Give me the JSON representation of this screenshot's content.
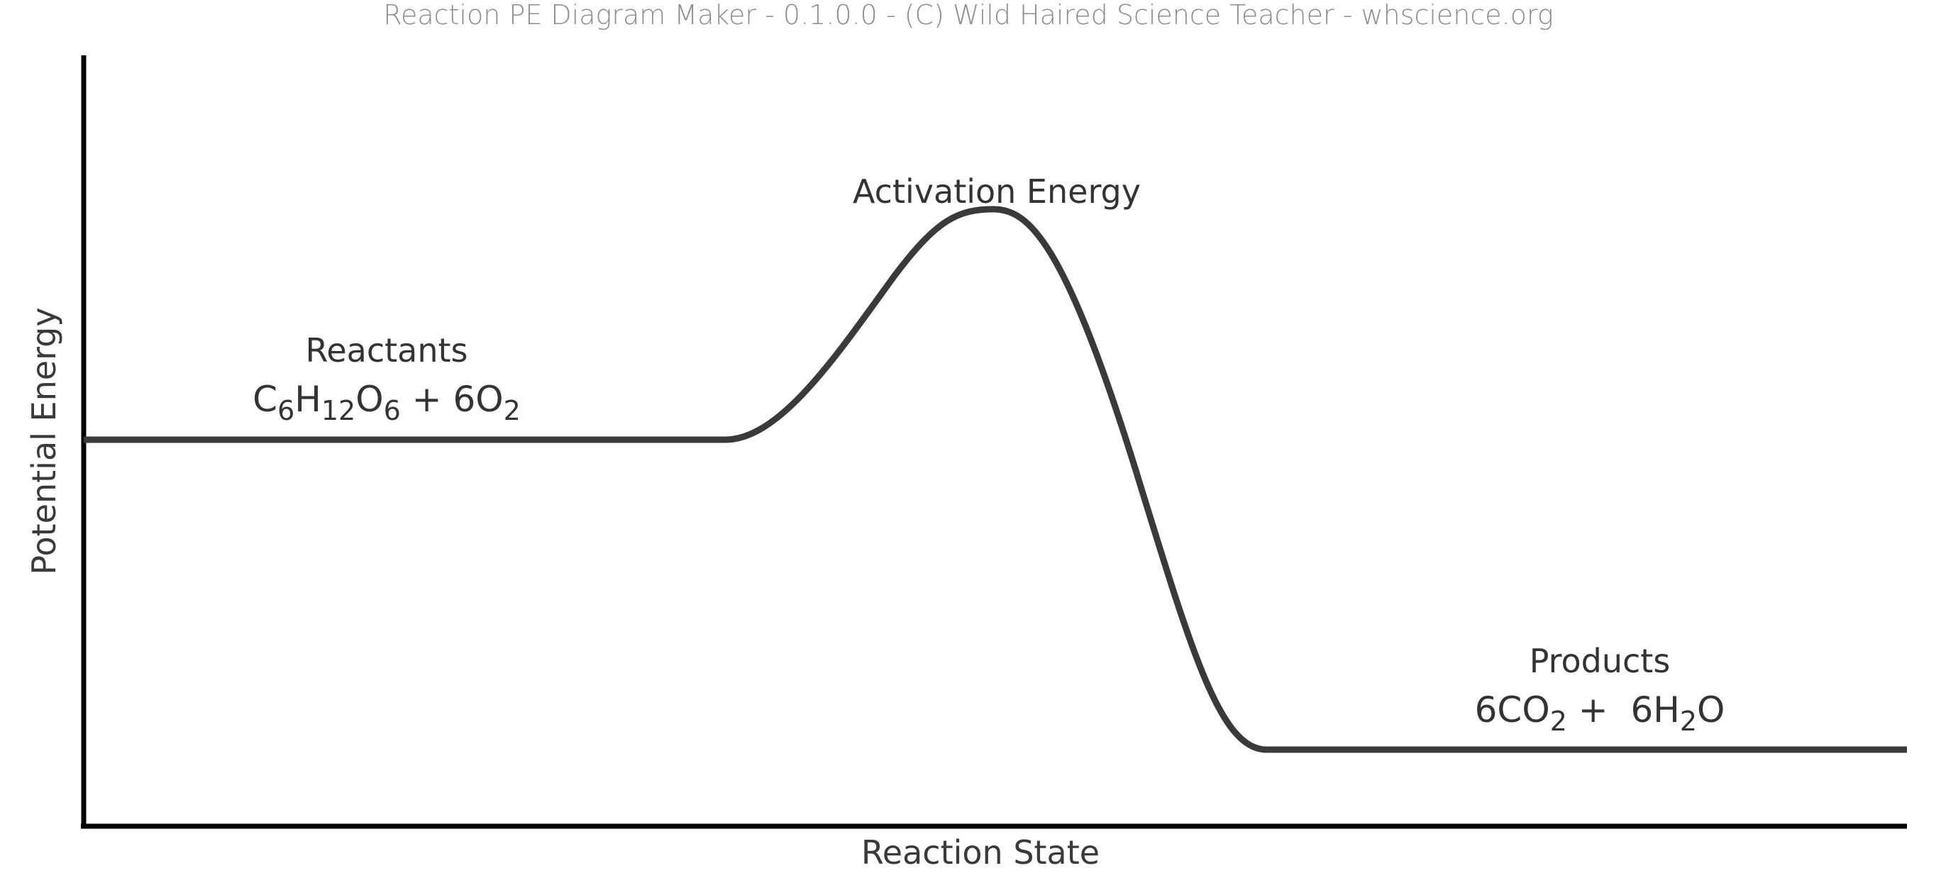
{
  "header": {
    "credit": "Reaction PE Diagram Maker - 0.1.0.0 - (C) Wild Haired Science Teacher - whscience.org"
  },
  "axes": {
    "y_label": "Potential Energy",
    "x_label": "Reaction State"
  },
  "states": {
    "reactants": {
      "label": "Reactants",
      "formula": [
        {
          "t": "C",
          "sub": false
        },
        {
          "t": "6",
          "sub": true
        },
        {
          "t": "H",
          "sub": false
        },
        {
          "t": "12",
          "sub": true
        },
        {
          "t": "O",
          "sub": false
        },
        {
          "t": "6",
          "sub": true
        },
        {
          "t": " + 6O",
          "sub": false
        },
        {
          "t": "2",
          "sub": true
        }
      ]
    },
    "activation": {
      "label": "Activation Energy"
    },
    "products": {
      "label": "Products",
      "formula": [
        {
          "t": "6CO",
          "sub": false
        },
        {
          "t": "2",
          "sub": true
        },
        {
          "t": " +  6H",
          "sub": false
        },
        {
          "t": "2",
          "sub": true
        },
        {
          "t": "O",
          "sub": false
        }
      ]
    }
  },
  "colors": {
    "curve": "#3a3a3a",
    "axis": "#000000",
    "credit": "#8c8c8c"
  }
}
